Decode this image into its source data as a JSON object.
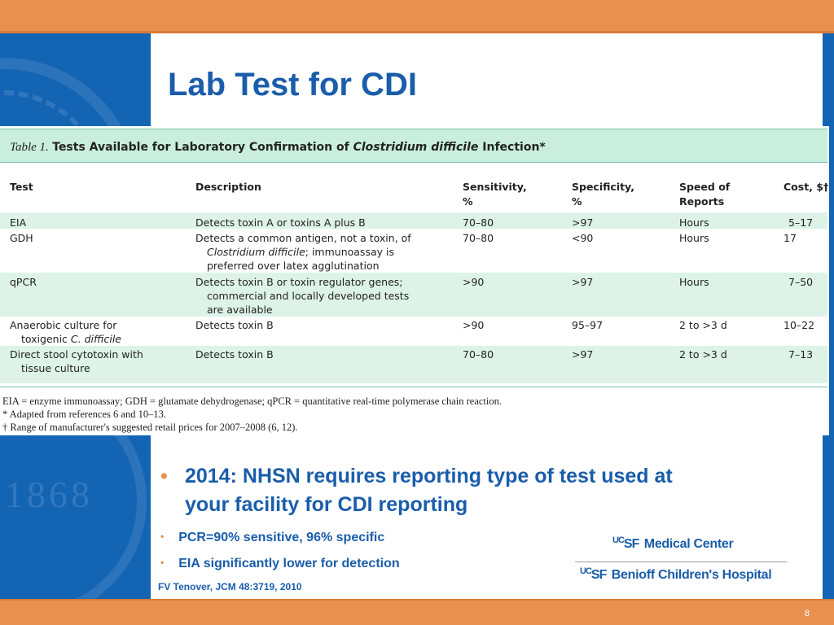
{
  "slide": {
    "title": "Lab Test for CDI",
    "page_number": "8"
  },
  "table": {
    "caption_num": "Table 1.",
    "caption_a": "Tests Available for Laboratory Confirmation of ",
    "caption_italic": "Clostridium difficile",
    "caption_b": " Infection*",
    "columns": {
      "test": "Test",
      "description": "Description",
      "sensitivity": "Sensitivity,",
      "sensitivity_unit": "%",
      "specificity": "Specificity,",
      "specificity_unit": "%",
      "speed": "Speed of",
      "speed2": "Reports",
      "cost": "Cost, $†"
    },
    "rows": [
      {
        "test": "EIA",
        "desc1": "Detects toxin A or toxins A plus B",
        "sensitivity": "70–80",
        "specificity": ">97",
        "speed": "Hours",
        "cost": "5–17"
      },
      {
        "test": "GDH",
        "desc1": "Detects a common antigen, not a toxin, of",
        "desc2_italic": "Clostridium difficile",
        "desc2_rest": "; immunoassay is",
        "desc3": "preferred over latex agglutination",
        "sensitivity": "70–80",
        "specificity": "<90",
        "speed": "Hours",
        "cost": "17"
      },
      {
        "test": "qPCR",
        "desc1": "Detects toxin B or toxin regulator genes;",
        "desc2": "commercial and locally developed tests",
        "desc3": "are available",
        "sensitivity": ">90",
        "specificity": ">97",
        "speed": "Hours",
        "cost": "7–50"
      },
      {
        "test1": "Anaerobic culture for",
        "test2_a": "toxigenic ",
        "test2_italic": "C. difficile",
        "desc1": "Detects toxin B",
        "sensitivity": ">90",
        "specificity": "95–97",
        "speed": "2 to >3 d",
        "cost": "10–22"
      },
      {
        "test1": "Direct stool cytotoxin with",
        "test2": "tissue culture",
        "desc1": "Detects toxin B",
        "sensitivity": "70–80",
        "specificity": ">97",
        "speed": "2 to >3 d",
        "cost": "7–13"
      }
    ],
    "footnotes": [
      "EIA = enzyme immunoassay; GDH = glutamate dehydrogenase; qPCR = quantitative real-time polymerase chain reaction.",
      "* Adapted from references 6 and 10–13.",
      "† Range of manufacturer's suggested retail prices for 2007–2008 (6, 12)."
    ]
  },
  "bullets": {
    "main_line1": "2014: NHSN requires reporting type of test used at",
    "main_line2": "your facility for CDI reporting",
    "sub1": "PCR=90% sensitive, 96% specific",
    "sub2": "EIA significantly lower for detection",
    "citation": "FV Tenover, JCM 48:3719, 2010"
  },
  "logos": {
    "logo1_mark_uc": "UC",
    "logo1_mark_sf": "SF",
    "logo1_text": "Medical Center",
    "logo2_mark_uc": "UC",
    "logo2_mark_sf": "SF",
    "logo2_text": "Benioff Children's Hospital"
  },
  "colors": {
    "accent_orange": "#E8914F",
    "brand_blue": "#1464B4",
    "title_blue": "#1A5DAA",
    "table_green": "#C9EEDD"
  }
}
